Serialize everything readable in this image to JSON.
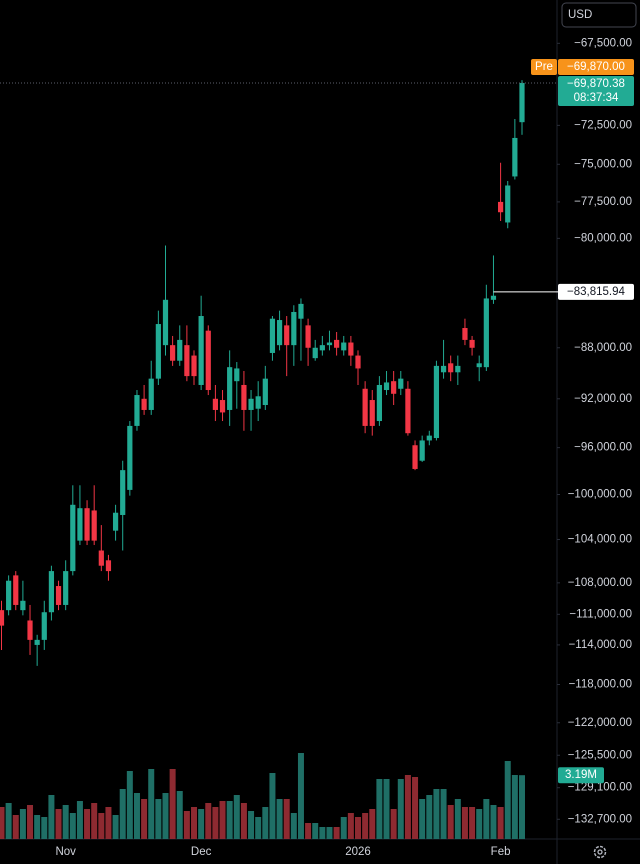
{
  "chart_data": {
    "type": "candlestick",
    "currency": "USD",
    "log_scale": true,
    "grid": false,
    "up_color": "#22ab94",
    "down_color": "#f23645",
    "volume_up_color": "#1f6f66",
    "volume_down_color": "#8e2a31",
    "ylim": [
      -65000,
      -135000
    ],
    "yticks": [
      {
        "value": -67500,
        "label": "−67,500.00"
      },
      {
        "value": -72500,
        "label": "−72,500.00"
      },
      {
        "value": -75000,
        "label": "−75,000.00"
      },
      {
        "value": -77500,
        "label": "−77,500.00"
      },
      {
        "value": -80000,
        "label": "−80,000.00"
      },
      {
        "value": -88000,
        "label": "−88,000.00"
      },
      {
        "value": -92000,
        "label": "−92,000.00"
      },
      {
        "value": -96000,
        "label": "−96,000.00"
      },
      {
        "value": -100000,
        "label": "−100,000.00"
      },
      {
        "value": -104000,
        "label": "−104,000.00"
      },
      {
        "value": -108000,
        "label": "−108,000.00"
      },
      {
        "value": -111000,
        "label": "−111,000.00"
      },
      {
        "value": -114000,
        "label": "−114,000.00"
      },
      {
        "value": -118000,
        "label": "−118,000.00"
      },
      {
        "value": -122000,
        "label": "−122,000.00"
      },
      {
        "value": -125500,
        "label": "−125,500.00"
      },
      {
        "value": -129100,
        "label": "−129,100.00"
      },
      {
        "value": -132700,
        "label": "−132,700.00"
      }
    ],
    "categories": [
      null,
      null,
      null,
      null,
      null,
      null,
      null,
      null,
      null,
      "Nov",
      null,
      null,
      null,
      null,
      null,
      null,
      null,
      null,
      null,
      null,
      null,
      null,
      null,
      null,
      null,
      null,
      null,
      null,
      "Dec",
      null,
      null,
      null,
      null,
      null,
      null,
      null,
      null,
      null,
      null,
      null,
      null,
      null,
      null,
      null,
      null,
      null,
      null,
      null,
      null,
      null,
      "2026",
      null,
      null,
      null,
      null,
      null,
      null,
      null,
      null,
      null,
      null,
      null,
      null,
      null,
      null,
      null,
      null,
      null,
      null,
      null,
      "Feb",
      null,
      null,
      null
    ],
    "open": [
      -110600,
      -110600,
      -107300,
      -110600,
      -111600,
      -114000,
      -113500,
      -110800,
      -108300,
      -110100,
      -106900,
      -104100,
      -101200,
      -101400,
      -105000,
      -105900,
      -103200,
      -101800,
      -99600,
      -94200,
      -92000,
      -92900,
      -90400,
      -87800,
      -87800,
      -89000,
      -87800,
      -88600,
      -90900,
      -86700,
      -92000,
      -92100,
      -92900,
      -90600,
      -90900,
      -92900,
      -92800,
      -92500,
      -88400,
      -87800,
      -86300,
      -87800,
      -85800,
      -86300,
      -88800,
      -88200,
      -87800,
      -87400,
      -88200,
      -87600,
      -88600,
      -91200,
      -92100,
      -93800,
      -91300,
      -90600,
      -91200,
      -91200,
      -95800,
      -97100,
      -95400,
      -95200,
      -89900,
      -89200,
      -89900,
      -86500,
      -87400,
      -89500,
      -89500,
      -84400,
      -77500,
      -78900,
      -75800,
      -72300
    ],
    "high": [
      -109700,
      -107300,
      -106900,
      -107800,
      -110100,
      -113000,
      -109700,
      -106400,
      -107800,
      -105900,
      -99200,
      -99200,
      -100500,
      -99200,
      -102700,
      -105400,
      -100900,
      -97100,
      -93800,
      -91300,
      -90900,
      -89000,
      -85200,
      -80500,
      -87100,
      -86300,
      -86300,
      -88200,
      -84100,
      -86300,
      -90900,
      -91300,
      -88200,
      -89100,
      -89800,
      -91300,
      -90600,
      -89400,
      -85600,
      -85200,
      -85600,
      -84800,
      -84300,
      -85800,
      -87400,
      -87100,
      -86700,
      -86800,
      -87100,
      -87100,
      -88200,
      -90600,
      -91300,
      -90200,
      -89800,
      -89800,
      -89800,
      -90600,
      -95400,
      -95000,
      -94600,
      -89000,
      -87400,
      -88600,
      -88600,
      -85800,
      -87100,
      -88600,
      -83300,
      -81200,
      -74900,
      -76100,
      -72100,
      -69700
    ],
    "low": [
      -114500,
      -111100,
      -110600,
      -111100,
      -115000,
      -116100,
      -114500,
      -111600,
      -110600,
      -110600,
      -107300,
      -104500,
      -104500,
      -104500,
      -106900,
      -107800,
      -104100,
      -105000,
      -100100,
      -94600,
      -93300,
      -93300,
      -90900,
      -88600,
      -89400,
      -89400,
      -90600,
      -90900,
      -91300,
      -91700,
      -93800,
      -93800,
      -94200,
      -92800,
      -94600,
      -94600,
      -93800,
      -92900,
      -89000,
      -88200,
      -90200,
      -89400,
      -89000,
      -89400,
      -89000,
      -88600,
      -88200,
      -88600,
      -88600,
      -89400,
      -90900,
      -94800,
      -95000,
      -94200,
      -91700,
      -92500,
      -91700,
      -95000,
      -97900,
      -97200,
      -95800,
      -95400,
      -90400,
      -90600,
      -90900,
      -87800,
      -88600,
      -90600,
      -89800,
      -84700,
      -78800,
      -79300,
      -76000,
      -73100
    ],
    "close": [
      -112100,
      -107800,
      -110100,
      -109700,
      -113500,
      -113500,
      -110800,
      -106900,
      -110100,
      -106900,
      -100900,
      -101200,
      -104100,
      -104100,
      -106400,
      -106900,
      -101600,
      -97900,
      -94200,
      -91700,
      -92900,
      -90400,
      -86200,
      -84400,
      -89000,
      -87400,
      -90200,
      -90200,
      -85600,
      -91300,
      -92900,
      -93100,
      -89500,
      -89600,
      -92900,
      -92000,
      -91800,
      -90400,
      -85800,
      -85900,
      -87800,
      -85300,
      -84700,
      -88000,
      -88000,
      -87800,
      -87600,
      -88000,
      -87600,
      -88600,
      -89600,
      -94200,
      -94200,
      -90900,
      -90700,
      -91600,
      -90400,
      -94800,
      -97800,
      -95400,
      -95000,
      -89400,
      -89400,
      -89900,
      -89400,
      -87400,
      -88000,
      -89200,
      -84300,
      -84100,
      -78200,
      -76400,
      -73300,
      -69870.38
    ],
    "volume": {
      "values": [
        1.6,
        1.8,
        1.2,
        1.5,
        1.7,
        1.2,
        1.1,
        2.2,
        1.5,
        1.7,
        1.3,
        1.9,
        1.5,
        1.8,
        1.3,
        1.6,
        1.2,
        2.5,
        3.4,
        2.3,
        2.0,
        3.5,
        2.0,
        2.3,
        3.5,
        2.4,
        1.4,
        1.6,
        1.5,
        1.8,
        1.6,
        1.9,
        1.9,
        2.2,
        1.8,
        1.4,
        1.1,
        1.6,
        3.3,
        2.0,
        2.0,
        1.3,
        4.3,
        0.8,
        0.8,
        0.6,
        0.6,
        0.6,
        1.1,
        1.3,
        1.1,
        1.3,
        1.5,
        3.0,
        3.0,
        1.5,
        3.0,
        3.2,
        3.1,
        2.0,
        2.2,
        2.5,
        2.5,
        1.7,
        2.0,
        1.6,
        1.6,
        1.5,
        2.0,
        1.7,
        1.6,
        3.9,
        3.2,
        3.19
      ],
      "value_labels": [
        null,
        null,
        null,
        null,
        null,
        null,
        null,
        null,
        null,
        null,
        null,
        null,
        null,
        null,
        null,
        null,
        null,
        null,
        null,
        null,
        null,
        null,
        null,
        null,
        null,
        null,
        null,
        null,
        null,
        null,
        null,
        null,
        null,
        null,
        null,
        null,
        null,
        null,
        null,
        null,
        null,
        null,
        null,
        null,
        null,
        null,
        null,
        null,
        null,
        null,
        null,
        null,
        null,
        null,
        null,
        null,
        null,
        null,
        null,
        null,
        null,
        null,
        null,
        null,
        null,
        null,
        null,
        null,
        null,
        null,
        null,
        null,
        null,
        "3.19M"
      ]
    },
    "pre_market": {
      "tag": "Pre",
      "value": -69870,
      "label": "−69,870.00"
    },
    "last_price": {
      "value": -69870.38,
      "label": "−69,870.38",
      "countdown": "08:37:34"
    },
    "price_line": {
      "value": -83815.94,
      "label": "−83,815.94"
    }
  }
}
